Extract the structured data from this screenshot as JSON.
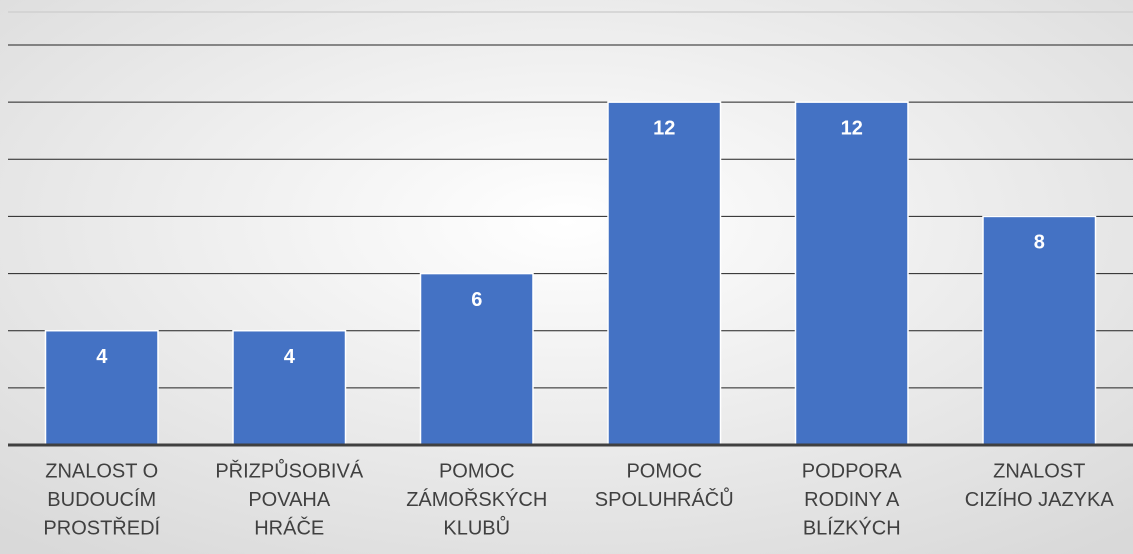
{
  "chart_data": {
    "type": "bar",
    "categories": [
      [
        "ZNALOST O",
        "BUDOUCÍM",
        "PROSTŘEDÍ"
      ],
      [
        "PŘIZPŮSOBIVÁ",
        "POVAHA",
        "HRÁČE"
      ],
      [
        "POMOC",
        "ZÁMOŘSKÝCH",
        "KLUBŮ"
      ],
      [
        "POMOC",
        "SPOLUHRÁČŮ"
      ],
      [
        "PODPORA",
        "RODINY A",
        "BLÍZKÝCH"
      ],
      [
        "ZNALOST",
        "CIZÍHO JAZYKA"
      ]
    ],
    "values": [
      4,
      4,
      6,
      12,
      12,
      8
    ],
    "color": "#4472c4",
    "ylim": [
      0,
      14
    ],
    "yticks": [
      0,
      2,
      4,
      6,
      8,
      10,
      12,
      14
    ],
    "grid": true
  }
}
